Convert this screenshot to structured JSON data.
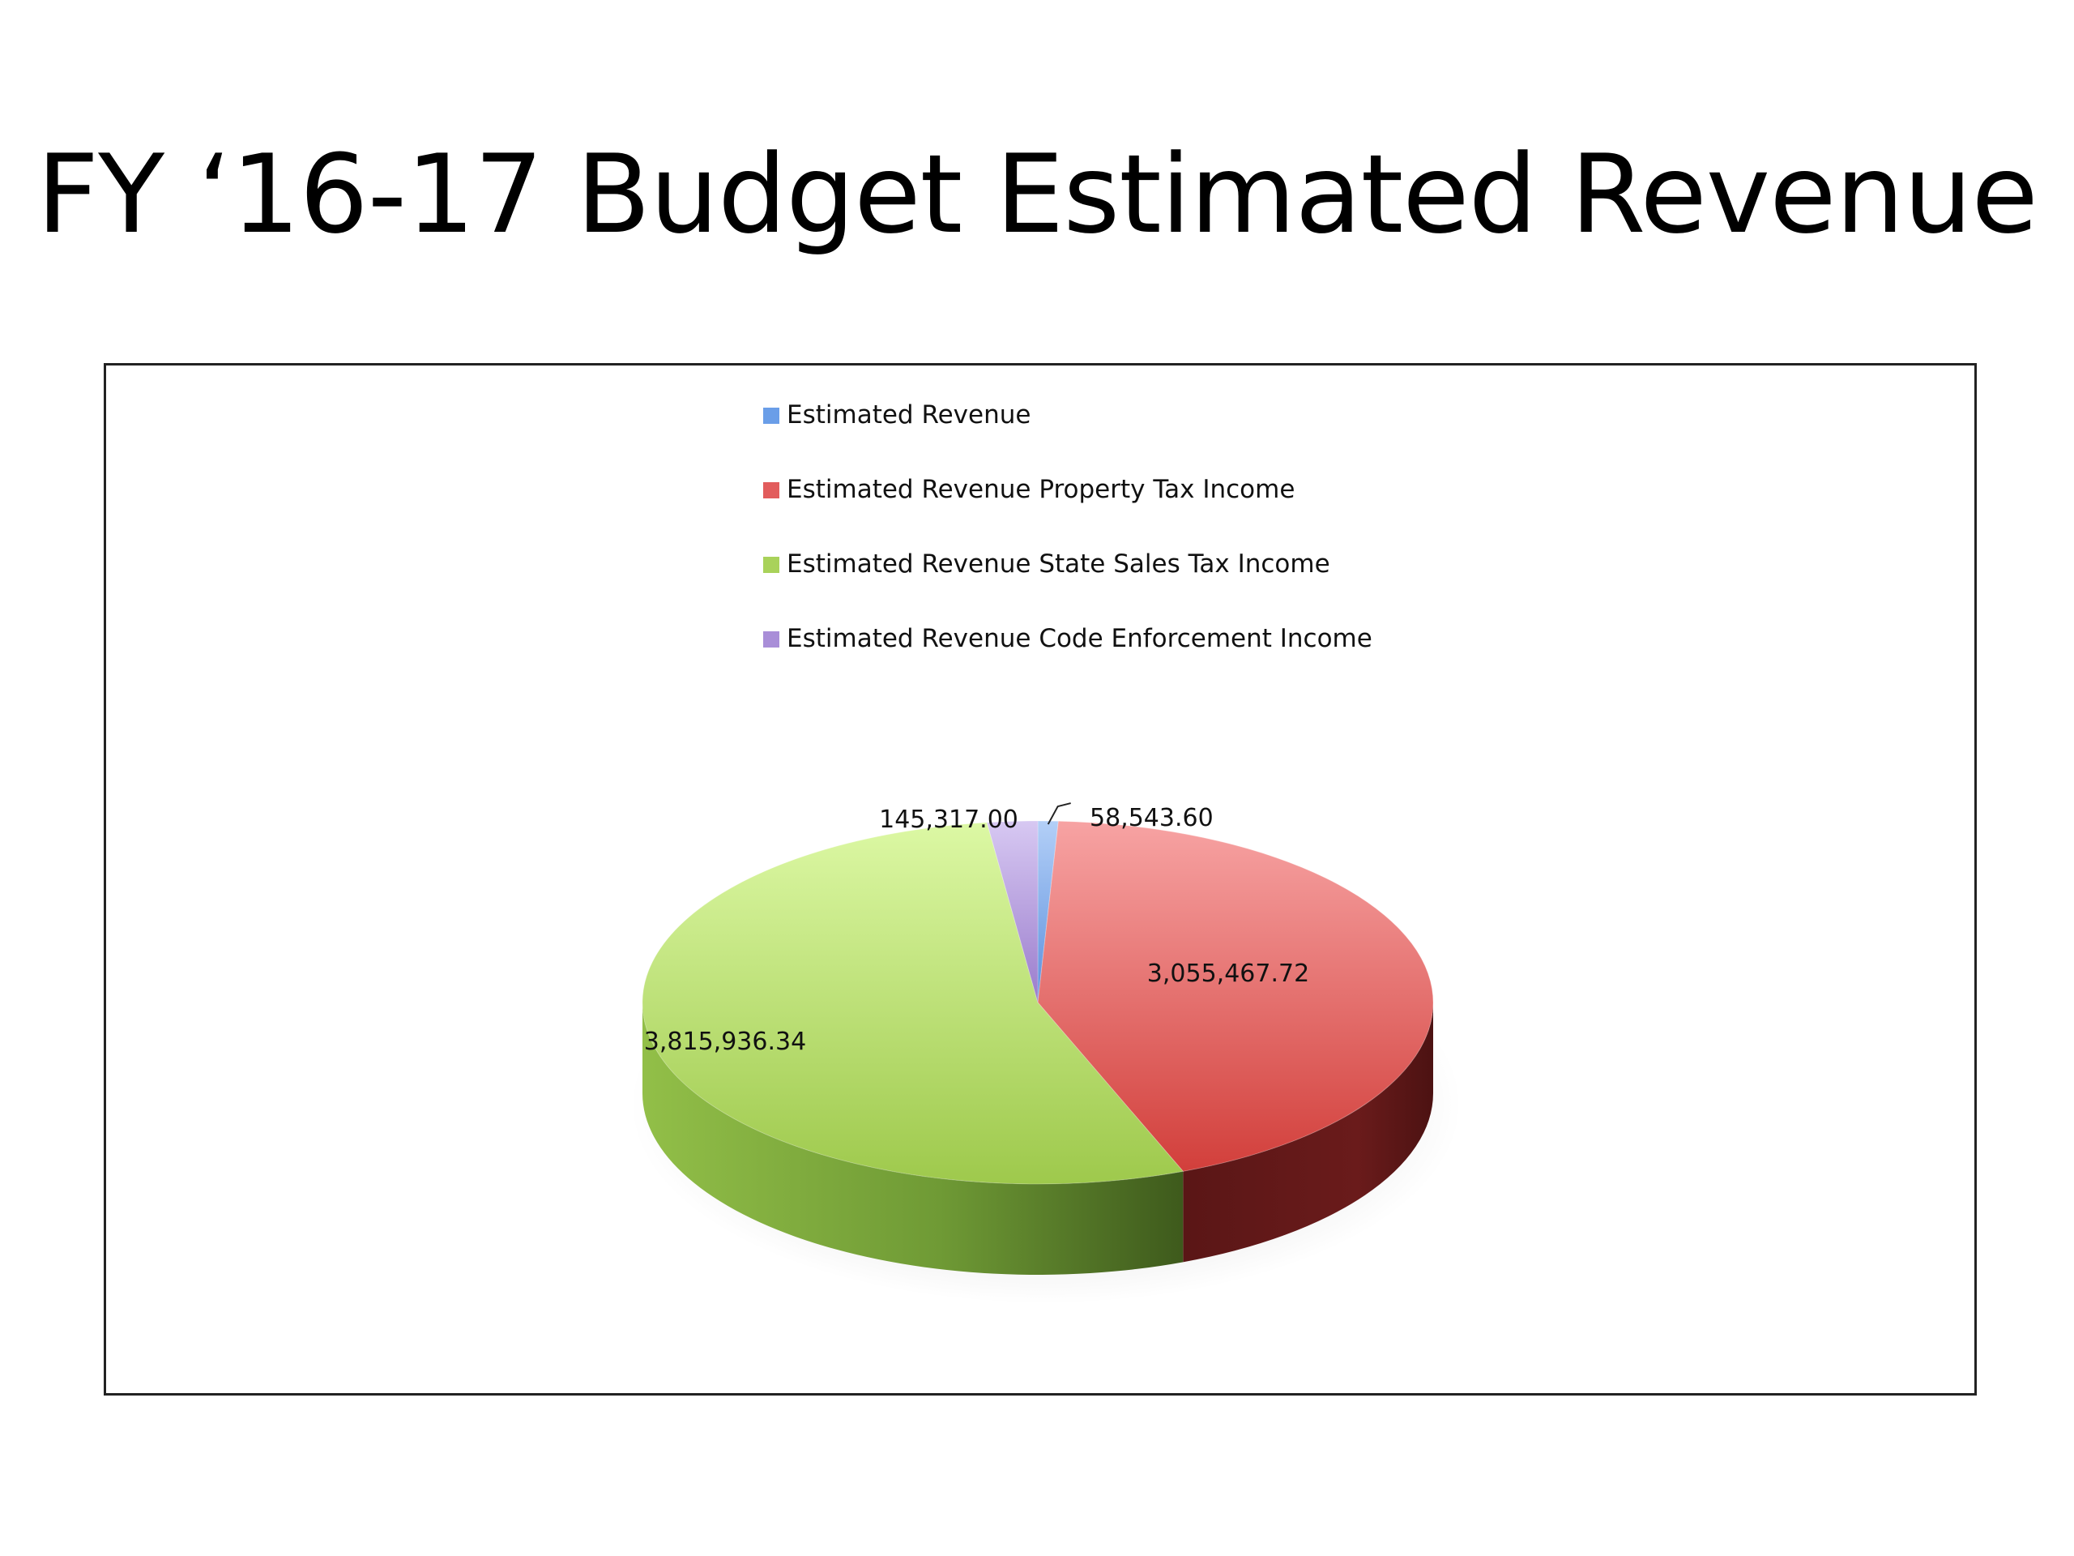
{
  "slide": {
    "title": "FY ‘16-17 Budget Estimated Revenue"
  },
  "chart_data": {
    "type": "pie",
    "style": "3d",
    "legend_position": "top",
    "series": [
      {
        "name": "Estimated Revenue",
        "value": 58543.6,
        "label": "58,543.60",
        "color": "#6a9ee8"
      },
      {
        "name": "Estimated Revenue Property Tax Income",
        "value": 3055467.72,
        "label": "3,055,467.72",
        "color": "#e25c5c"
      },
      {
        "name": "Estimated Revenue State Sales Tax Income",
        "value": 3815936.34,
        "label": "3,815,936.34",
        "color": "#a9d25a"
      },
      {
        "name": "Estimated Revenue Code Enforcement Income",
        "value": 145317.0,
        "label": "145,317.00",
        "color": "#a98ed8"
      }
    ]
  }
}
